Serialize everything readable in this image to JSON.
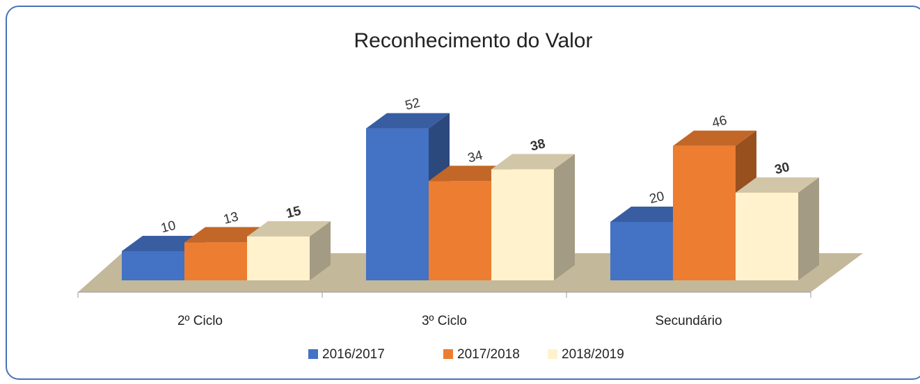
{
  "chart_data": {
    "type": "bar3d",
    "title": "Reconhecimento do Valor",
    "categories": [
      "2º Ciclo",
      "3º Ciclo",
      "Secundário"
    ],
    "series": [
      {
        "name": "2016/2017",
        "color": "#4472c4",
        "values": [
          10,
          52,
          20
        ]
      },
      {
        "name": "2017/2018",
        "color": "#ed7d31",
        "values": [
          13,
          34,
          46
        ]
      },
      {
        "name": "2018/2019",
        "color": "#fff2cc",
        "values": [
          15,
          38,
          30
        ],
        "bold_labels": true
      }
    ],
    "legend": "bottom"
  }
}
